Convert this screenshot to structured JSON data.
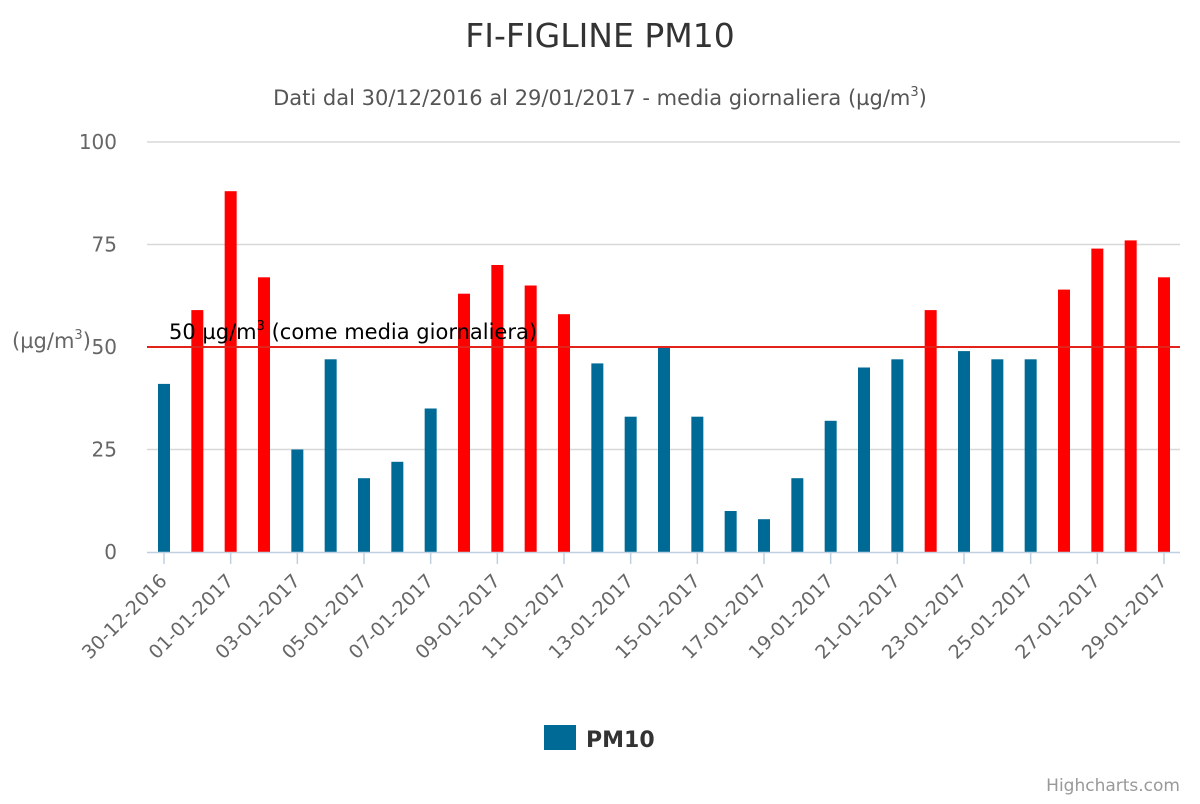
{
  "chart_data": {
    "type": "bar",
    "title": "FI-FIGLINE PM10",
    "subtitle": {
      "prefix": "Dati dal 30/12/2016 al 29/01/2017 - media giornaliera (µg/m",
      "sup": "3",
      "suffix": ")"
    },
    "ylabel": {
      "prefix": "(µg/m",
      "sup": "3",
      "suffix": ")"
    },
    "ylim": [
      0,
      100
    ],
    "yticks": [
      0,
      25,
      50,
      75,
      100
    ],
    "grid": true,
    "categories": [
      "30-12-2016",
      "31-12-2016",
      "01-01-2017",
      "02-01-2017",
      "03-01-2017",
      "04-01-2017",
      "05-01-2017",
      "06-01-2017",
      "07-01-2017",
      "08-01-2017",
      "09-01-2017",
      "10-01-2017",
      "11-01-2017",
      "12-01-2017",
      "13-01-2017",
      "14-01-2017",
      "15-01-2017",
      "16-01-2017",
      "17-01-2017",
      "18-01-2017",
      "19-01-2017",
      "20-01-2017",
      "21-01-2017",
      "22-01-2017",
      "23-01-2017",
      "24-01-2017",
      "25-01-2017",
      "26-01-2017",
      "27-01-2017",
      "28-01-2017",
      "29-01-2017"
    ],
    "xtick_labels_shown": [
      "30-12-2016",
      "01-01-2017",
      "03-01-2017",
      "05-01-2017",
      "07-01-2017",
      "09-01-2017",
      "11-01-2017",
      "13-01-2017",
      "15-01-2017",
      "17-01-2017",
      "19-01-2017",
      "21-01-2017",
      "23-01-2017",
      "25-01-2017",
      "27-01-2017",
      "29-01-2017"
    ],
    "series": [
      {
        "name": "PM10",
        "color": "#006a96",
        "values": [
          41,
          59,
          88,
          67,
          25,
          47,
          18,
          22,
          35,
          63,
          70,
          65,
          58,
          46,
          33,
          50,
          33,
          10,
          8,
          18,
          32,
          45,
          47,
          59,
          49,
          47,
          47,
          64,
          74,
          76,
          67
        ]
      }
    ],
    "threshold": {
      "value": 50,
      "color": "#e32219",
      "label": {
        "prefix": "50 µg/m",
        "sup": "3",
        "suffix": " (come media giornaliera)"
      }
    },
    "exceedance_color": "#ff0000",
    "legend": {
      "position": "bottom-center",
      "items": [
        {
          "name": "PM10",
          "color": "#006a96"
        }
      ]
    },
    "credits": "Highcharts.com"
  }
}
